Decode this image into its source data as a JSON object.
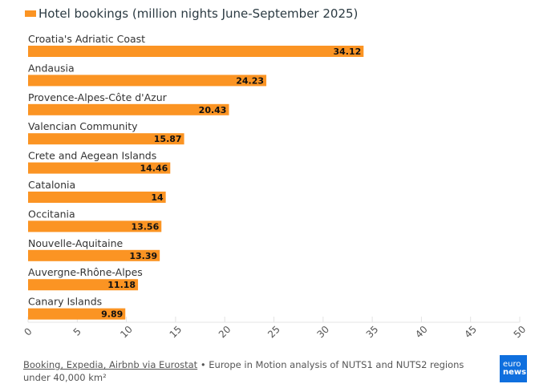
{
  "chart_data": {
    "type": "bar",
    "orientation": "horizontal",
    "title": "",
    "legend": [
      "Hotel bookings (million nights June-September 2025)"
    ],
    "legend_position": "top-left",
    "categories": [
      "Croatia's Adriatic Coast",
      "Andausia",
      "Provence-Alpes-Côte d'Azur",
      "Valencian Community",
      "Crete and Aegean Islands",
      "Catalonia",
      "Occitania",
      "Nouvelle-Aquitaine",
      "Auvergne-Rhône-Alpes",
      "Canary Islands"
    ],
    "values": [
      34.12,
      24.23,
      20.43,
      15.87,
      14.46,
      14,
      13.56,
      13.39,
      11.18,
      9.89
    ],
    "value_labels": [
      "34.12",
      "24.23",
      "20.43",
      "15.87",
      "14.46",
      "14",
      "13.56",
      "13.39",
      "11.18",
      "9.89"
    ],
    "xlim": [
      0,
      50
    ],
    "xticks": [
      "0",
      "5",
      "10",
      "15",
      "20",
      "25",
      "30",
      "35",
      "40",
      "45",
      "50"
    ],
    "xlabel": "",
    "ylabel": "",
    "bar_color": "#fb9423"
  },
  "footer": {
    "source_link": "Booking, Expedia, Airbnb via Eurostat",
    "note": " • Europe in Motion analysis of NUTS1 and NUTS2 regions under 40,000 km²"
  },
  "logo": {
    "line1": "euro",
    "line2": "news."
  }
}
